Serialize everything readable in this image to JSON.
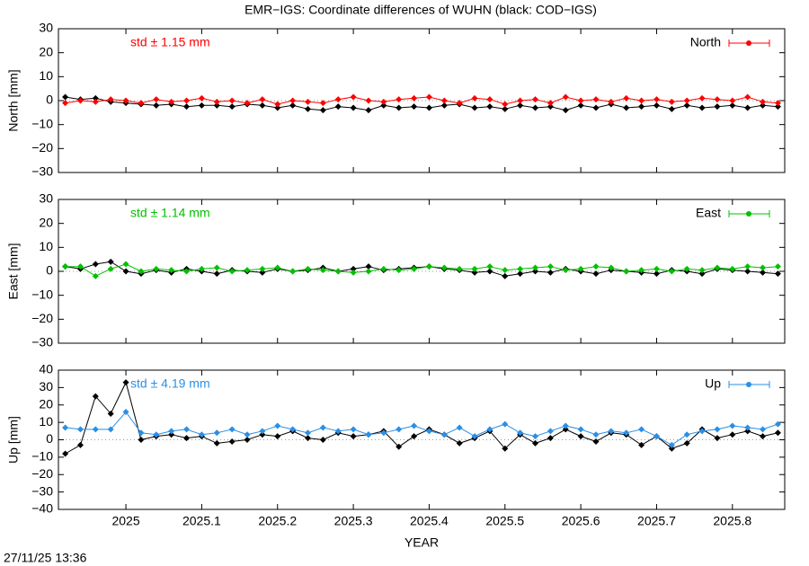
{
  "title": "EMR−IGS: Coordinate differences of WUHN (black: COD−IGS)",
  "timestamp": "27/11/25 13:36",
  "chart_data": [
    {
      "type": "line",
      "ylabel": "North [mm]",
      "annotation": "std ± 1.15 mm",
      "x": [
        2024.92,
        2024.94,
        2024.96,
        2024.98,
        2025.0,
        2025.02,
        2025.04,
        2025.06,
        2025.08,
        2025.1,
        2025.12,
        2025.14,
        2025.16,
        2025.18,
        2025.2,
        2025.22,
        2025.24,
        2025.26,
        2025.28,
        2025.3,
        2025.32,
        2025.34,
        2025.36,
        2025.38,
        2025.4,
        2025.42,
        2025.44,
        2025.46,
        2025.48,
        2025.5,
        2025.52,
        2025.54,
        2025.56,
        2025.58,
        2025.6,
        2025.62,
        2025.64,
        2025.66,
        2025.68,
        2025.7,
        2025.72,
        2025.74,
        2025.76,
        2025.78,
        2025.8,
        2025.82,
        2025.84,
        2025.86
      ],
      "series": [
        {
          "color": "#000000",
          "values": [
            1.5,
            0.5,
            1,
            -0.5,
            -1,
            -1.5,
            -2,
            -1.5,
            -2.5,
            -2,
            -2,
            -2.5,
            -1.5,
            -2,
            -3,
            -2,
            -3.5,
            -4,
            -2.5,
            -3,
            -4,
            -2,
            -3,
            -2.5,
            -3,
            -2,
            -1.5,
            -3,
            -2.5,
            -3.5,
            -2,
            -3,
            -2.5,
            -4,
            -2,
            -3,
            -1.5,
            -3,
            -2.5,
            -2,
            -3.5,
            -2,
            -3,
            -2.5,
            -2,
            -3,
            -2,
            -2.5
          ]
        },
        {
          "name": "North",
          "color": "#ff0000",
          "values": [
            -1,
            0,
            -0.5,
            0.5,
            0,
            -1,
            0.5,
            -0.5,
            0,
            1,
            -0.5,
            0,
            -1,
            0.5,
            -1.5,
            0,
            -0.5,
            -1,
            0.5,
            1.5,
            0,
            -0.5,
            0.5,
            1,
            1.5,
            0,
            -1,
            1,
            0.5,
            -1.5,
            0,
            0.5,
            -1,
            1.5,
            0,
            0.5,
            -0.5,
            1,
            0,
            0.5,
            -0.5,
            0,
            1,
            0.5,
            0,
            1.5,
            -0.5,
            -1
          ]
        }
      ],
      "xlim": [
        2024.911,
        2025.869
      ],
      "xticks": [
        2025,
        2025.1,
        2025.2,
        2025.3,
        2025.4,
        2025.5,
        2025.6,
        2025.7,
        2025.8
      ],
      "ylim": [
        -30,
        30
      ],
      "yticks": [
        {
          "value": -30,
          "label": "−30"
        },
        {
          "value": -20,
          "label": "−20"
        },
        {
          "value": -10,
          "label": "−10"
        },
        0,
        10,
        20,
        30
      ],
      "legend": "top-right"
    },
    {
      "type": "line",
      "ylabel": "East [mm]",
      "annotation": "std ± 1.14 mm",
      "x": [
        2024.92,
        2024.94,
        2024.96,
        2024.98,
        2025.0,
        2025.02,
        2025.04,
        2025.06,
        2025.08,
        2025.1,
        2025.12,
        2025.14,
        2025.16,
        2025.18,
        2025.2,
        2025.22,
        2025.24,
        2025.26,
        2025.28,
        2025.3,
        2025.32,
        2025.34,
        2025.36,
        2025.38,
        2025.4,
        2025.42,
        2025.44,
        2025.46,
        2025.48,
        2025.5,
        2025.52,
        2025.54,
        2025.56,
        2025.58,
        2025.6,
        2025.62,
        2025.64,
        2025.66,
        2025.68,
        2025.7,
        2025.72,
        2025.74,
        2025.76,
        2025.78,
        2025.8,
        2025.82,
        2025.84,
        2025.86
      ],
      "series": [
        {
          "color": "#000000",
          "values": [
            2,
            1,
            3,
            4,
            0,
            -1,
            0.5,
            -0.5,
            1,
            0,
            -1,
            0.5,
            0,
            -0.5,
            1,
            0,
            0.5,
            1.5,
            0,
            1,
            2,
            0.5,
            1,
            1.5,
            2,
            1,
            0.5,
            -0.5,
            0,
            -2,
            -1,
            0,
            -0.5,
            1,
            0,
            -1,
            0.5,
            0,
            -0.5,
            -1,
            0.5,
            0,
            -1,
            1,
            0.5,
            0,
            -0.5,
            -1
          ]
        },
        {
          "name": "East",
          "color": "#00c000",
          "values": [
            2,
            2,
            -2,
            1,
            3,
            0,
            1,
            0.5,
            0,
            1,
            1.5,
            0,
            0.5,
            1,
            1.5,
            0,
            1,
            0.5,
            0,
            -0.5,
            0,
            1,
            0.5,
            1,
            2,
            1.5,
            1,
            1,
            2,
            0.5,
            1,
            1.5,
            2,
            0.5,
            1,
            2,
            1.5,
            0,
            0.5,
            1,
            0,
            1,
            0.5,
            1.5,
            1,
            2,
            1.5,
            2
          ]
        }
      ],
      "xlim": [
        2024.911,
        2025.869
      ],
      "xticks": [
        2025,
        2025.1,
        2025.2,
        2025.3,
        2025.4,
        2025.5,
        2025.6,
        2025.7,
        2025.8
      ],
      "ylim": [
        -30,
        30
      ],
      "yticks": [
        {
          "value": -30,
          "label": "−30"
        },
        {
          "value": -20,
          "label": "−20"
        },
        {
          "value": -10,
          "label": "−10"
        },
        0,
        10,
        20,
        30
      ],
      "legend": "top-right"
    },
    {
      "type": "line",
      "ylabel": "Up [mm]",
      "xlabel": "YEAR",
      "annotation": "std ± 4.19 mm",
      "x": [
        2024.92,
        2024.94,
        2024.96,
        2024.98,
        2025.0,
        2025.02,
        2025.04,
        2025.06,
        2025.08,
        2025.1,
        2025.12,
        2025.14,
        2025.16,
        2025.18,
        2025.2,
        2025.22,
        2025.24,
        2025.26,
        2025.28,
        2025.3,
        2025.32,
        2025.34,
        2025.36,
        2025.38,
        2025.4,
        2025.42,
        2025.44,
        2025.46,
        2025.48,
        2025.5,
        2025.52,
        2025.54,
        2025.56,
        2025.58,
        2025.6,
        2025.62,
        2025.64,
        2025.66,
        2025.68,
        2025.7,
        2025.72,
        2025.74,
        2025.76,
        2025.78,
        2025.8,
        2025.82,
        2025.84,
        2025.86
      ],
      "series": [
        {
          "color": "#000000",
          "values": [
            -8,
            -3,
            25,
            15,
            33,
            0,
            2,
            3,
            1,
            2,
            -2,
            -1,
            0,
            3,
            2,
            5,
            1,
            0,
            4,
            2,
            3,
            5,
            -4,
            2,
            6,
            3,
            -2,
            1,
            5,
            -5,
            3,
            -2,
            1,
            6,
            2,
            -1,
            4,
            3,
            -3,
            2,
            -5,
            -2,
            6,
            1,
            3,
            5,
            2,
            4
          ]
        },
        {
          "name": "Up",
          "color": "#2a8fe6",
          "values": [
            7,
            6,
            6,
            6,
            16,
            4,
            3,
            5,
            6,
            3,
            4,
            6,
            3,
            5,
            8,
            6,
            4,
            7,
            5,
            6,
            3,
            4,
            6,
            8,
            5,
            3,
            7,
            2,
            6,
            9,
            4,
            2,
            5,
            8,
            6,
            3,
            5,
            4,
            6,
            2,
            -3,
            3,
            5,
            6,
            8,
            7,
            6,
            9
          ]
        }
      ],
      "xlim": [
        2024.911,
        2025.869
      ],
      "xticks": [
        2025,
        2025.1,
        2025.2,
        2025.3,
        2025.4,
        2025.5,
        2025.6,
        2025.7,
        2025.8
      ],
      "ylim": [
        -40,
        40
      ],
      "yticks": [
        {
          "value": -40,
          "label": "−40"
        },
        {
          "value": -30,
          "label": "−30"
        },
        {
          "value": -20,
          "label": "−20"
        },
        {
          "value": -10,
          "label": "−10"
        },
        0,
        10,
        20,
        30,
        40
      ],
      "legend": "top-right"
    }
  ]
}
